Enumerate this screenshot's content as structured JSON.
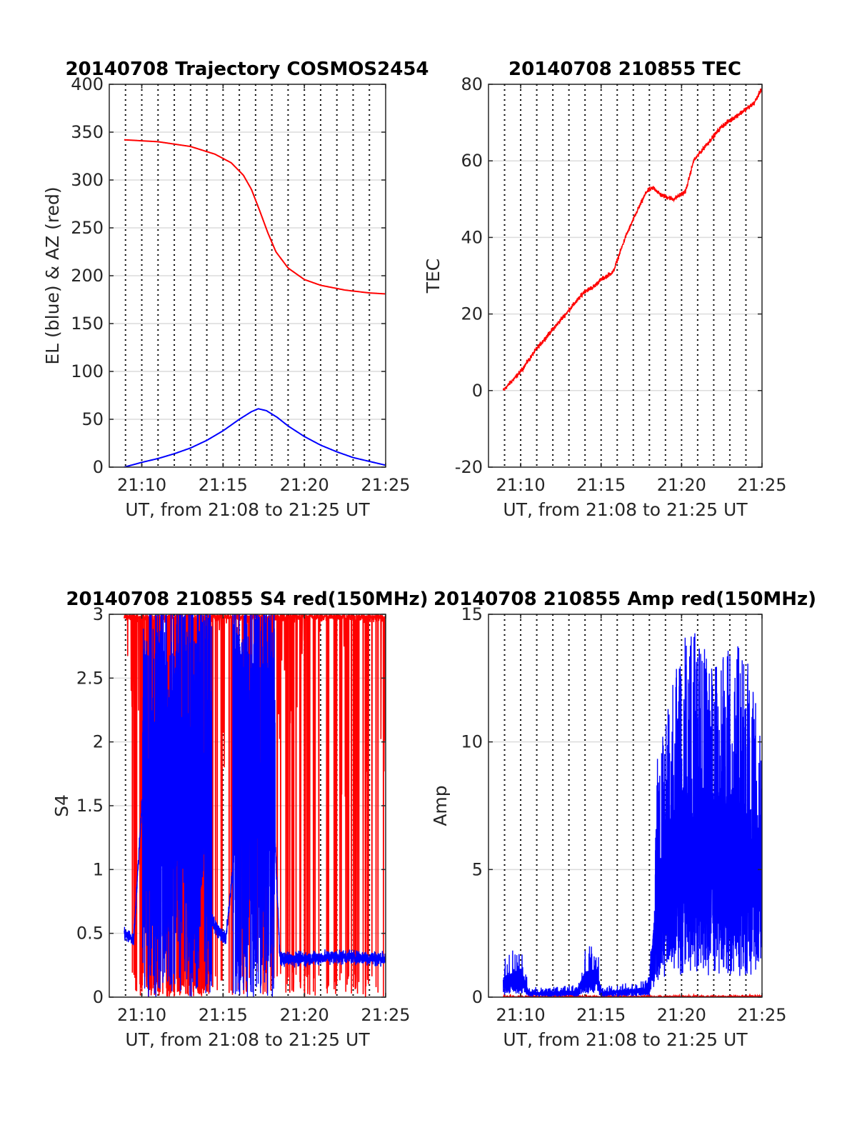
{
  "colors": {
    "red": "#ff0000",
    "blue": "#0000ff",
    "grid": "#dcdcdc",
    "axis": "#262626"
  },
  "chart_data": [
    {
      "type": "line",
      "title": "20140708 Trajectory COSMOS2454",
      "xlabel": "UT, from 21:08 to 21:25 UT",
      "ylabel": "EL (blue) & AZ (red)",
      "xlim": [
        "21:08",
        "21:25"
      ],
      "ylim": [
        0,
        400
      ],
      "xticks": [
        "21:10",
        "21:15",
        "21:20",
        "21:25"
      ],
      "yticks": [
        "0",
        "50",
        "100",
        "150",
        "200",
        "250",
        "300",
        "350",
        "400"
      ],
      "grid": "dotted vertical lines every 1 minute, light horizontal lines at y ticks",
      "series": [
        {
          "color": "red",
          "x": [
            "21:08:55",
            "21:11:00",
            "21:13:00",
            "21:14:30",
            "21:15:30",
            "21:16:15",
            "21:16:45",
            "21:17:15",
            "21:17:45",
            "21:18:15",
            "21:19:00",
            "21:20:00",
            "21:21:00",
            "21:22:30",
            "21:24:00",
            "21:25:00"
          ],
          "values": [
            342,
            340,
            335,
            327,
            318,
            305,
            290,
            268,
            245,
            225,
            208,
            196,
            190,
            185,
            182,
            181
          ]
        },
        {
          "color": "blue",
          "x": [
            "21:08:55",
            "21:10:00",
            "21:11:00",
            "21:12:00",
            "21:13:00",
            "21:14:00",
            "21:15:00",
            "21:16:00",
            "21:16:45",
            "21:17:10",
            "21:17:40",
            "21:18:20",
            "21:19:00",
            "21:20:00",
            "21:21:00",
            "21:22:00",
            "21:23:00",
            "21:24:00",
            "21:25:00"
          ],
          "values": [
            0,
            5,
            9,
            14,
            20,
            28,
            38,
            50,
            58,
            61,
            59,
            52,
            43,
            32,
            23,
            16,
            10,
            6,
            2
          ]
        }
      ]
    },
    {
      "type": "line",
      "title": "20140708 210855 TEC",
      "xlabel": "UT, from 21:08 to 21:25 UT",
      "ylabel": "TEC",
      "xlim": [
        "21:08",
        "21:25"
      ],
      "ylim": [
        -20,
        80
      ],
      "xticks": [
        "21:10",
        "21:15",
        "21:20",
        "21:25"
      ],
      "yticks": [
        "-20",
        "0",
        "20",
        "40",
        "60",
        "80"
      ],
      "grid": "dotted vertical lines every 1 minute, light horizontal lines at y ticks",
      "series": [
        {
          "color": "red",
          "x": [
            "21:08:55",
            "21:10:00",
            "21:11:00",
            "21:12:00",
            "21:13:00",
            "21:14:00",
            "21:14:30",
            "21:15:00",
            "21:15:45",
            "21:16:30",
            "21:17:15",
            "21:17:50",
            "21:18:15",
            "21:18:45",
            "21:19:30",
            "21:20:15",
            "21:20:45",
            "21:21:30",
            "21:22:30",
            "21:23:30",
            "21:24:30",
            "21:25:00"
          ],
          "values": [
            0,
            5,
            11,
            16,
            21,
            26,
            27,
            29,
            31,
            40,
            47,
            52,
            53,
            51,
            50,
            52,
            60,
            64,
            69,
            72,
            75,
            79
          ]
        }
      ]
    },
    {
      "type": "line",
      "title": "20140708 210855 S4 red(150MHz)",
      "xlabel": "UT, from 21:08 to 21:25 UT",
      "ylabel": "S4",
      "xlim": [
        "21:08",
        "21:25"
      ],
      "ylim": [
        0,
        3
      ],
      "xticks": [
        "21:10",
        "21:15",
        "21:20",
        "21:25"
      ],
      "yticks": [
        "0",
        "0.5",
        "1",
        "1.5",
        "2",
        "2.5",
        "3"
      ],
      "grid": "dotted vertical lines every 1 minute, light horizontal lines at y ticks",
      "series": [
        {
          "color": "red",
          "description_level": "mostly saturated at 3 with frequent drops to 0",
          "x": [
            "21:08:55",
            "21:25:00"
          ],
          "values": [
            3,
            3
          ]
        },
        {
          "color": "blue",
          "x": [
            "21:08:55",
            "21:09:30",
            "21:10:00",
            "21:12:00",
            "21:14:30",
            "21:15:10",
            "21:16:00",
            "21:17:00",
            "21:17:45",
            "21:18:30",
            "21:20:00",
            "21:22:00",
            "21:25:00"
          ],
          "values": [
            0.5,
            0.45,
            1.5,
            1.5,
            0.55,
            0.45,
            1.5,
            2.4,
            2.6,
            0.3,
            0.3,
            0.32,
            0.3
          ]
        }
      ]
    },
    {
      "type": "line",
      "title": "20140708 210855 Amp red(150MHz)",
      "xlabel": "UT, from 21:08 to 21:25 UT",
      "ylabel": "Amp",
      "xlim": [
        "21:08",
        "21:25"
      ],
      "ylim": [
        0,
        15
      ],
      "xticks": [
        "21:10",
        "21:15",
        "21:20",
        "21:25"
      ],
      "yticks": [
        "0",
        "5",
        "10",
        "15"
      ],
      "grid": "dotted vertical lines every 1 minute, light horizontal lines at y ticks",
      "series": [
        {
          "color": "red",
          "x": [
            "21:08:55",
            "21:25:00"
          ],
          "values": [
            0.05,
            0.05
          ]
        },
        {
          "color": "blue",
          "x": [
            "21:08:55",
            "21:10:00",
            "21:10:30",
            "21:12:00",
            "21:13:30",
            "21:14:00",
            "21:14:45",
            "21:15:00",
            "21:17:00",
            "21:18:00",
            "21:18:30",
            "21:19:30",
            "21:20:30",
            "21:22:00",
            "21:23:30",
            "21:25:00"
          ],
          "values": [
            1.5,
            2.2,
            0.4,
            0.4,
            0.5,
            2.0,
            2.2,
            0.4,
            0.6,
            0.8,
            9.5,
            12.5,
            14.7,
            13.0,
            14.0,
            12.0
          ]
        }
      ]
    }
  ]
}
